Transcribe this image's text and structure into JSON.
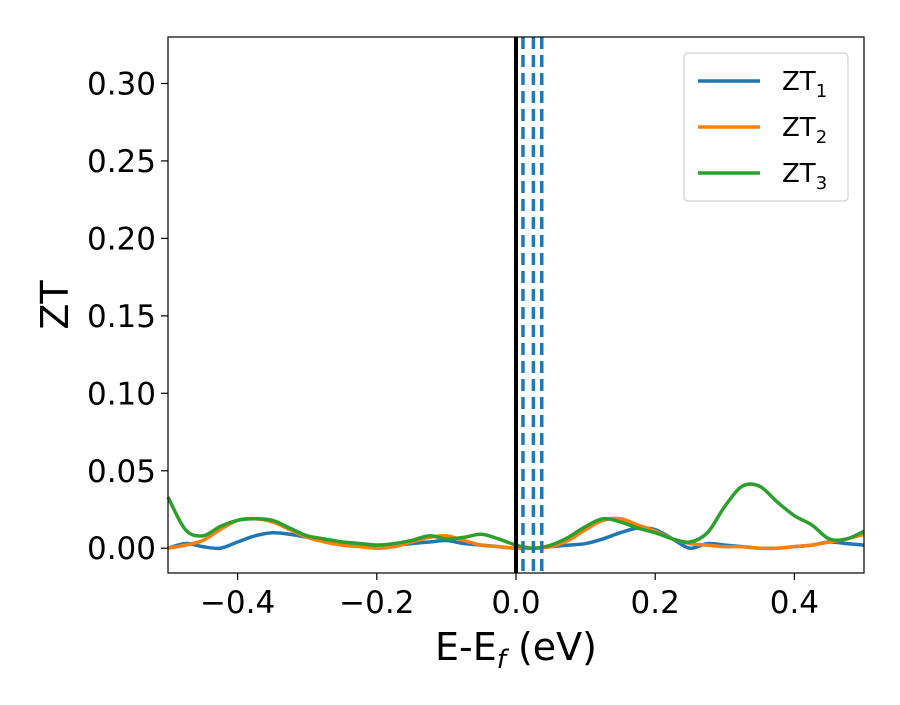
{
  "chart_data": {
    "type": "line",
    "xlabel": "E-E",
    "xlabel_subscript": "f",
    "xlabel_unit": " (eV)",
    "ylabel": "ZT",
    "xlim": [
      -0.5,
      0.5
    ],
    "ylim": [
      -0.016,
      0.33
    ],
    "xticks": [
      -0.4,
      -0.2,
      0.0,
      0.2,
      0.4
    ],
    "xtick_labels": [
      "−0.4",
      "−0.2",
      "0.0",
      "0.2",
      "0.4"
    ],
    "yticks": [
      0.0,
      0.05,
      0.1,
      0.15,
      0.2,
      0.25,
      0.3
    ],
    "ytick_labels": [
      "0.00",
      "0.05",
      "0.10",
      "0.15",
      "0.20",
      "0.25",
      "0.30"
    ],
    "grid": false,
    "legend_position": "top-right",
    "vertical_lines": [
      {
        "x": 0.0,
        "style": "solid",
        "color": "#000000"
      },
      {
        "x": 0.01,
        "style": "dashed",
        "color": "#1f77b4"
      },
      {
        "x": 0.025,
        "style": "dashed",
        "color": "#1f77b4"
      },
      {
        "x": 0.037,
        "style": "dashed",
        "color": "#1f77b4"
      }
    ],
    "x": [
      -0.5,
      -0.475,
      -0.45,
      -0.425,
      -0.4,
      -0.375,
      -0.35,
      -0.325,
      -0.3,
      -0.275,
      -0.25,
      -0.225,
      -0.2,
      -0.175,
      -0.15,
      -0.125,
      -0.1,
      -0.075,
      -0.05,
      -0.025,
      0.0,
      0.025,
      0.05,
      0.075,
      0.1,
      0.125,
      0.15,
      0.175,
      0.2,
      0.225,
      0.25,
      0.275,
      0.3,
      0.325,
      0.35,
      0.375,
      0.4,
      0.425,
      0.45,
      0.475,
      0.5
    ],
    "series": [
      {
        "name": "ZT",
        "subscript": "1",
        "color": "#1f77b4",
        "values": [
          0.0,
          0.003,
          0.001,
          0.0,
          0.004,
          0.008,
          0.01,
          0.009,
          0.007,
          0.005,
          0.004,
          0.003,
          0.002,
          0.002,
          0.003,
          0.004,
          0.005,
          0.003,
          0.002,
          0.001,
          0.0,
          0.0,
          0.001,
          0.002,
          0.003,
          0.006,
          0.01,
          0.013,
          0.012,
          0.006,
          0.0,
          0.003,
          0.002,
          0.001,
          0.0,
          0.0,
          0.001,
          0.002,
          0.004,
          0.003,
          0.002
        ]
      },
      {
        "name": "ZT",
        "subscript": "2",
        "color": "#ff7f0e",
        "values": [
          0.0,
          0.002,
          0.005,
          0.012,
          0.018,
          0.019,
          0.017,
          0.012,
          0.007,
          0.004,
          0.002,
          0.001,
          0.0,
          0.001,
          0.004,
          0.007,
          0.008,
          0.005,
          0.002,
          0.001,
          0.0,
          0.0,
          0.001,
          0.005,
          0.012,
          0.018,
          0.019,
          0.015,
          0.011,
          0.006,
          0.003,
          0.002,
          0.001,
          0.001,
          0.0,
          0.0,
          0.001,
          0.002,
          0.004,
          0.006,
          0.009
        ]
      },
      {
        "name": "ZT",
        "subscript": "3",
        "color": "#2ca02c",
        "values": [
          0.033,
          0.012,
          0.008,
          0.014,
          0.018,
          0.019,
          0.018,
          0.013,
          0.008,
          0.006,
          0.004,
          0.003,
          0.002,
          0.003,
          0.005,
          0.008,
          0.006,
          0.007,
          0.009,
          0.006,
          0.002,
          0.0,
          0.002,
          0.007,
          0.014,
          0.019,
          0.017,
          0.013,
          0.01,
          0.006,
          0.004,
          0.01,
          0.027,
          0.04,
          0.04,
          0.03,
          0.021,
          0.015,
          0.006,
          0.006,
          0.011
        ]
      }
    ]
  }
}
